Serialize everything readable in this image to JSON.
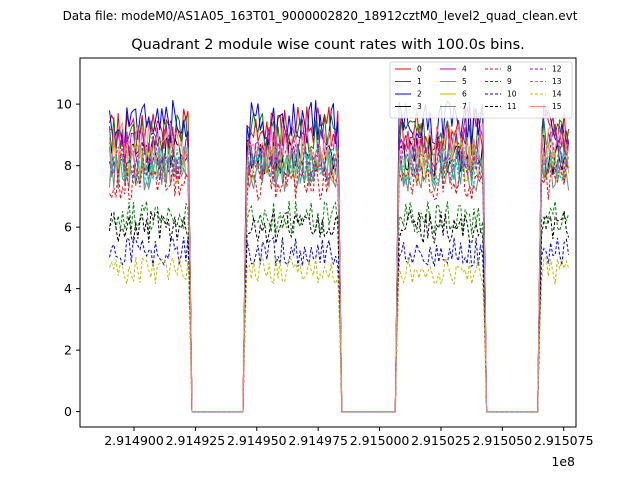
{
  "chart_data": {
    "type": "line",
    "suptitle": "Data file: modeM0/AS1A05_163T01_9000002820_18912cztM0_level2_quad_clean.evt",
    "title": "Quadrant 2 module wise count rates with 100.0s bins.",
    "xlabel": "",
    "ylabel": "",
    "x_offset_label": "1e8",
    "xlim": [
      2.914878,
      2.91508
    ],
    "ylim": [
      -0.5,
      11.5
    ],
    "x_ticks": [
      2.9149,
      2.914925,
      2.91495,
      2.914975,
      2.915,
      2.915025,
      2.91505,
      2.915075
    ],
    "x_tick_labels": [
      "2.914900",
      "2.914925",
      "2.914950",
      "2.914975",
      "2.915000",
      "2.915025",
      "2.915050",
      "2.915075"
    ],
    "y_ticks": [
      0,
      2,
      4,
      6,
      8,
      10
    ],
    "y_tick_labels": [
      "0",
      "2",
      "4",
      "6",
      "8",
      "10"
    ],
    "segments": [
      [
        2.91489,
        2.914922
      ],
      [
        2.914946,
        2.914983
      ],
      [
        2.915008,
        2.915042
      ],
      [
        2.915066,
        2.915077
      ]
    ],
    "grid": false,
    "legend_position": "top-right",
    "series": [
      {
        "name": "0",
        "color": "#ff0000",
        "dashed": false,
        "level": 9.2
      },
      {
        "name": "1",
        "color": "#008000",
        "dashed": false,
        "level": 9.0
      },
      {
        "name": "2",
        "color": "#0000ff",
        "dashed": false,
        "level": 9.4
      },
      {
        "name": "3",
        "color": "#000000",
        "dashed": false,
        "level": 8.3
      },
      {
        "name": "4",
        "color": "#bf00bf",
        "dashed": false,
        "level": 8.6
      },
      {
        "name": "5",
        "color": "#00bfbf",
        "dashed": false,
        "level": 8.0
      },
      {
        "name": "6",
        "color": "#bfbf00",
        "dashed": false,
        "level": 8.1
      },
      {
        "name": "7",
        "color": "#808080",
        "dashed": false,
        "level": 7.8
      },
      {
        "name": "8",
        "color": "#ff0000",
        "dashed": true,
        "level": 7.5
      },
      {
        "name": "9",
        "color": "#008000",
        "dashed": true,
        "level": 6.3
      },
      {
        "name": "10",
        "color": "#0000ff",
        "dashed": true,
        "level": 5.2
      },
      {
        "name": "11",
        "color": "#000000",
        "dashed": true,
        "level": 6.0
      },
      {
        "name": "12",
        "color": "#bf00bf",
        "dashed": true,
        "level": 8.2
      },
      {
        "name": "13",
        "color": "#00bfbf",
        "dashed": true,
        "level": 8.0
      },
      {
        "name": "14",
        "color": "#bfbf00",
        "dashed": true,
        "level": 4.6
      },
      {
        "name": "15",
        "color": "#ff8080",
        "dashed": false,
        "level": 8.7
      }
    ]
  }
}
